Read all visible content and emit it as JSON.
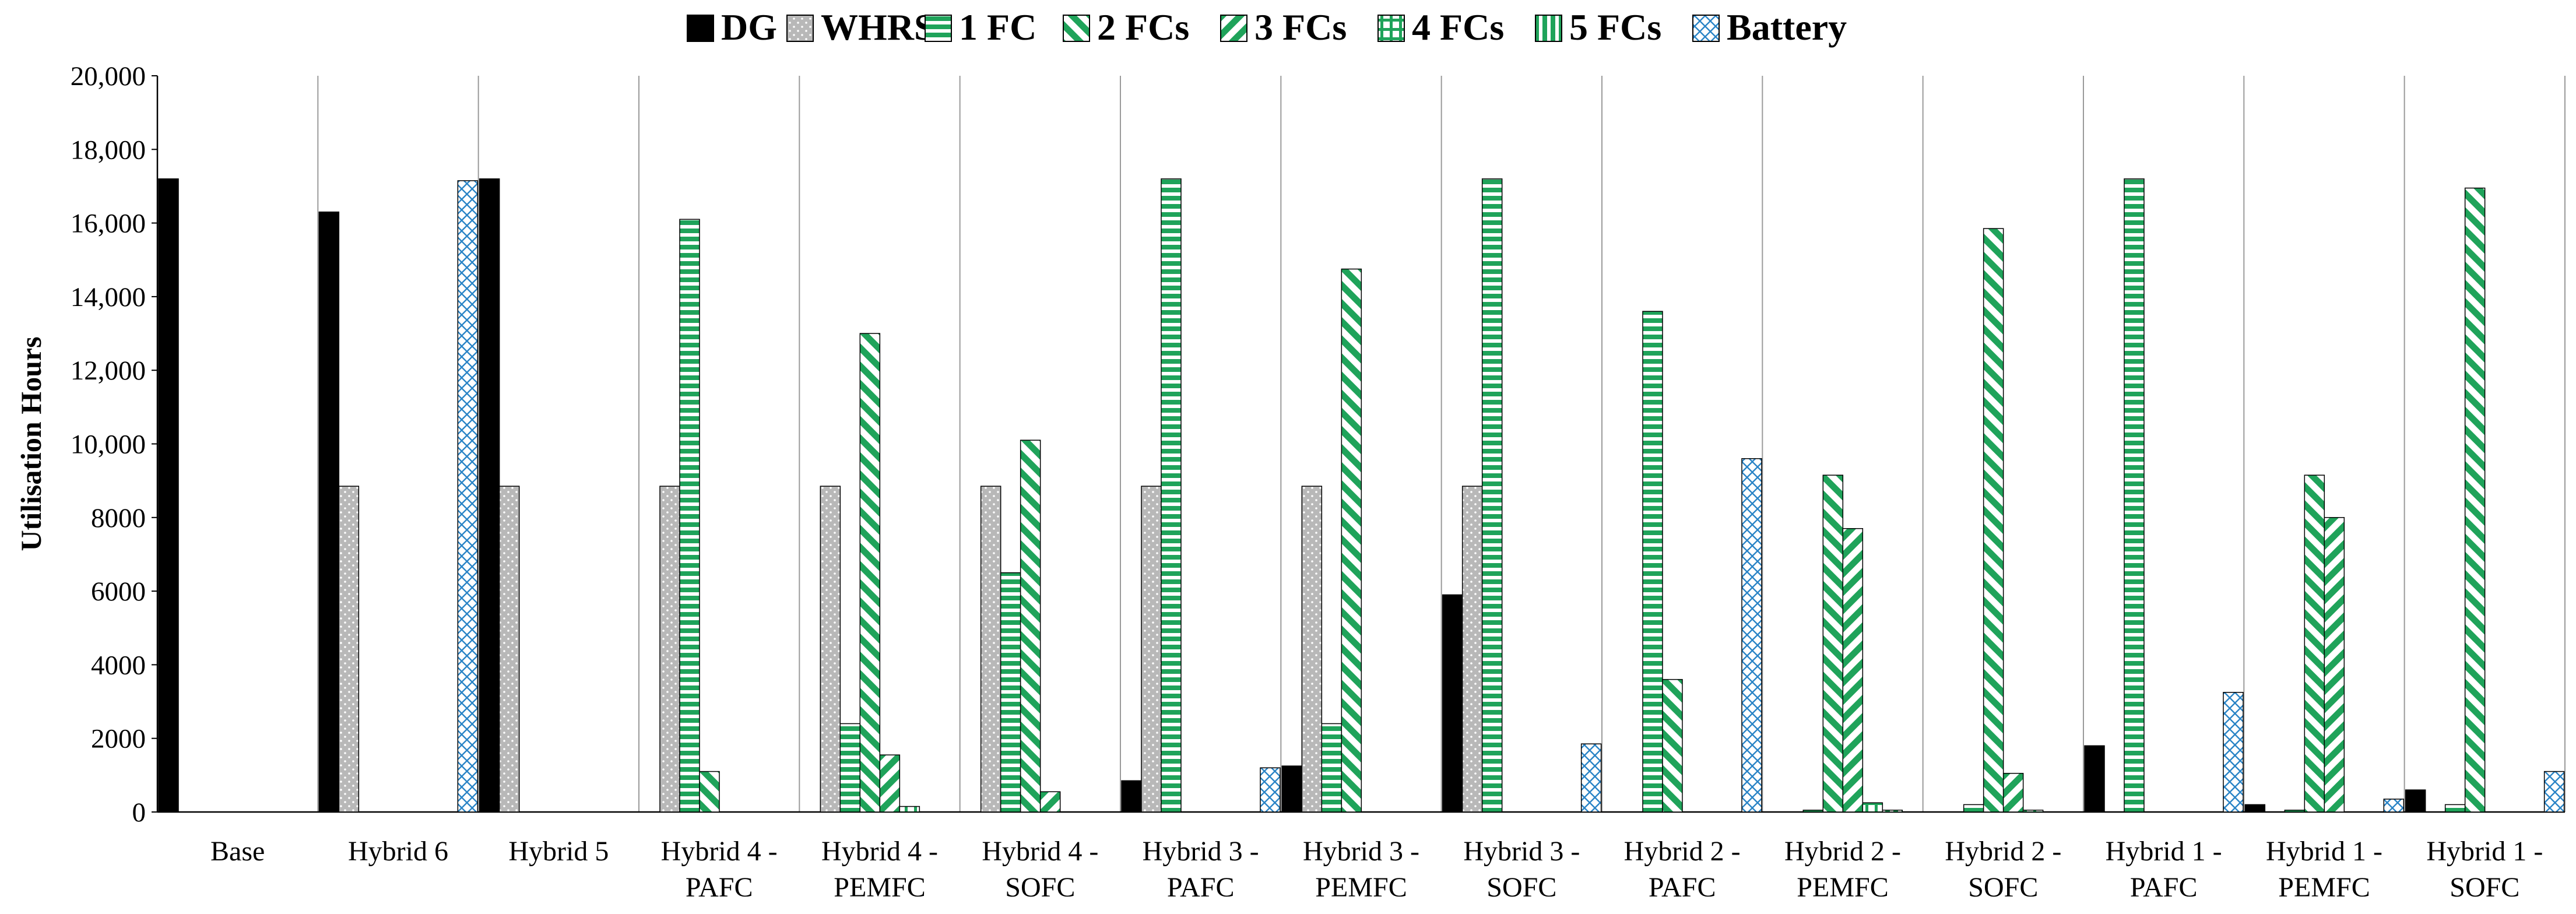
{
  "chart_data": {
    "type": "bar",
    "title": "",
    "xlabel": "",
    "ylabel": "Utilisation Hours",
    "ylim": [
      0,
      20000
    ],
    "yticks": [
      {
        "value": 0,
        "label": "0"
      },
      {
        "value": 2000,
        "label": "2000"
      },
      {
        "value": 4000,
        "label": "4000"
      },
      {
        "value": 6000,
        "label": "6000"
      },
      {
        "value": 8000,
        "label": "8000"
      },
      {
        "value": 10000,
        "label": "10,000"
      },
      {
        "value": 12000,
        "label": "12,000"
      },
      {
        "value": 14000,
        "label": "14,000"
      },
      {
        "value": 16000,
        "label": "16,000"
      },
      {
        "value": 18000,
        "label": "18,000"
      },
      {
        "value": 20000,
        "label": "20,000"
      }
    ],
    "categories": [
      [
        "Base"
      ],
      [
        "Hybrid 6"
      ],
      [
        "Hybrid 5"
      ],
      [
        "Hybrid 4 -",
        "PAFC"
      ],
      [
        "Hybrid 4 -",
        "PEMFC"
      ],
      [
        "Hybrid 4 -",
        "SOFC"
      ],
      [
        "Hybrid 3 -",
        "PAFC"
      ],
      [
        "Hybrid 3 -",
        "PEMFC"
      ],
      [
        "Hybrid 3 -",
        "SOFC"
      ],
      [
        "Hybrid 2 -",
        "PAFC"
      ],
      [
        "Hybrid 2 -",
        "PEMFC"
      ],
      [
        "Hybrid 2 -",
        "SOFC"
      ],
      [
        "Hybrid 1 -",
        "PAFC"
      ],
      [
        "Hybrid 1 -",
        "PEMFC"
      ],
      [
        "Hybrid 1 -",
        "SOFC"
      ]
    ],
    "legend_position": "top",
    "series": [
      {
        "name": "DG",
        "pattern": "solid-black",
        "values": [
          17200,
          16300,
          17200,
          0,
          0,
          0,
          850,
          1250,
          5900,
          0,
          0,
          0,
          1800,
          200,
          600
        ]
      },
      {
        "name": "WHRS",
        "pattern": "dotted-gray",
        "values": [
          0,
          8850,
          8850,
          8850,
          8850,
          8850,
          8850,
          8850,
          8850,
          0,
          0,
          0,
          0,
          0,
          0
        ]
      },
      {
        "name": "1 FC",
        "pattern": "horizontal-stripes",
        "values": [
          0,
          0,
          0,
          16100,
          2400,
          6500,
          17200,
          2400,
          17200,
          13600,
          50,
          200,
          17200,
          50,
          200
        ]
      },
      {
        "name": "2 FCs",
        "pattern": "forward-diagonal",
        "values": [
          0,
          0,
          0,
          1100,
          13000,
          10100,
          0,
          14750,
          0,
          3600,
          9150,
          15850,
          0,
          9150,
          16950
        ]
      },
      {
        "name": "3 FCs",
        "pattern": "back-diagonal",
        "values": [
          0,
          0,
          0,
          0,
          1550,
          550,
          0,
          0,
          0,
          0,
          7700,
          1050,
          0,
          8000,
          0
        ]
      },
      {
        "name": "4 FCs",
        "pattern": "grid",
        "values": [
          0,
          0,
          0,
          0,
          150,
          0,
          0,
          0,
          0,
          0,
          250,
          50,
          0,
          0,
          0
        ]
      },
      {
        "name": "5 FCs",
        "pattern": "vertical-stripes",
        "values": [
          0,
          0,
          0,
          0,
          0,
          0,
          0,
          0,
          0,
          0,
          50,
          0,
          0,
          0,
          0
        ]
      },
      {
        "name": "Battery",
        "pattern": "blue-crosshatch",
        "values": [
          0,
          17150,
          0,
          0,
          0,
          0,
          1200,
          0,
          1850,
          9600,
          0,
          0,
          3250,
          350,
          1100
        ]
      }
    ]
  }
}
